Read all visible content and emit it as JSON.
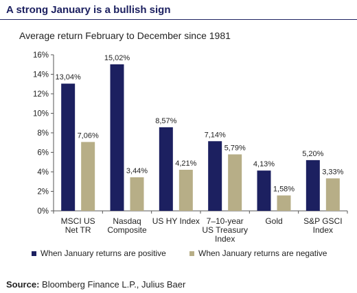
{
  "header": {
    "title": "A strong January is a bullish sign"
  },
  "chart_data": {
    "type": "bar",
    "title": "Average return February to December since 1981",
    "categories": [
      [
        "MSCI US",
        "Net TR"
      ],
      [
        "Nasdaq",
        "Composite"
      ],
      [
        "US HY Index"
      ],
      [
        "7–10-year",
        "US Treasury",
        "Index"
      ],
      [
        "Gold"
      ],
      [
        "S&P GSCI",
        "Index"
      ]
    ],
    "series": [
      {
        "name": "When January returns are positive",
        "color": "#1c2060",
        "values": [
          13.04,
          15.02,
          8.57,
          7.14,
          4.13,
          5.2
        ],
        "labels": [
          "13,04%",
          "15,02%",
          "8,57%",
          "7,14%",
          "4,13%",
          "5,20%"
        ]
      },
      {
        "name": "When January returns are negative",
        "color": "#b7ae87",
        "values": [
          7.06,
          3.44,
          4.21,
          5.79,
          1.58,
          3.33
        ],
        "labels": [
          "7,06%",
          "3,44%",
          "4,21%",
          "5,79%",
          "1,58%",
          "3,33%"
        ]
      }
    ],
    "ylim": [
      0,
      16
    ],
    "yticks": [
      "0%",
      "2%",
      "4%",
      "6%",
      "8%",
      "10%",
      "12%",
      "14%",
      "16%"
    ],
    "grid": false,
    "legend_position": "bottom"
  },
  "source": {
    "label": "Source:",
    "text": " Bloomberg Finance L.P., Julius Baer"
  }
}
